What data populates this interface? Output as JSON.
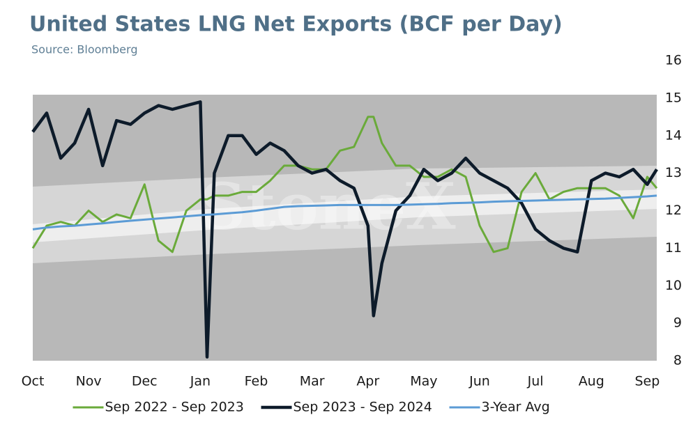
{
  "chart_data": {
    "type": "line",
    "title": "United States LNG Net Exports (BCF per Day)",
    "subtitle": "Source: Bloomberg",
    "watermark": "StoneX",
    "x": [
      0,
      0.25,
      0.5,
      0.75,
      1,
      1.25,
      1.5,
      1.75,
      2,
      2.25,
      2.5,
      2.75,
      3,
      3.12,
      3.25,
      3.5,
      3.75,
      4,
      4.25,
      4.5,
      4.75,
      5,
      5.25,
      5.5,
      5.75,
      6,
      6.1,
      6.25,
      6.5,
      6.75,
      7,
      7.25,
      7.5,
      7.75,
      8,
      8.25,
      8.5,
      8.75,
      9,
      9.25,
      9.5,
      9.75,
      10,
      10.25,
      10.5,
      10.75,
      11,
      11.17
    ],
    "xlim": [
      0,
      11.17
    ],
    "xticks": [
      {
        "value": 0,
        "label": "Oct"
      },
      {
        "value": 1,
        "label": "Nov"
      },
      {
        "value": 2,
        "label": "Dec"
      },
      {
        "value": 3,
        "label": "Jan"
      },
      {
        "value": 4,
        "label": "Feb"
      },
      {
        "value": 5,
        "label": "Mar"
      },
      {
        "value": 6,
        "label": "Apr"
      },
      {
        "value": 7,
        "label": "May"
      },
      {
        "value": 8,
        "label": "Jun"
      },
      {
        "value": 9,
        "label": "Jul"
      },
      {
        "value": 10,
        "label": "Aug"
      },
      {
        "value": 11,
        "label": "Sep"
      }
    ],
    "ylim": [
      8,
      16
    ],
    "yticks": [
      8,
      9,
      10,
      11,
      12,
      13,
      14,
      15,
      16
    ],
    "y_axis_side": "right",
    "legend": "bottom",
    "series": [
      {
        "name": "Sep 2022 - Sep 2023",
        "color": "#6aaa3a",
        "width": 3,
        "values": [
          11.0,
          11.6,
          11.7,
          11.6,
          12.0,
          11.7,
          11.9,
          11.8,
          12.7,
          11.2,
          10.9,
          12.0,
          12.3,
          12.3,
          12.4,
          12.4,
          12.5,
          12.5,
          12.8,
          13.2,
          13.2,
          13.1,
          13.1,
          13.6,
          13.7,
          14.5,
          14.5,
          13.8,
          13.2,
          13.2,
          12.9,
          12.9,
          13.1,
          12.9,
          11.6,
          10.9,
          11.0,
          12.5,
          13.0,
          12.3,
          12.5,
          12.6,
          12.6,
          12.6,
          12.4,
          11.8,
          12.9,
          12.6
        ]
      },
      {
        "name": "Sep 2023 - Sep 2024",
        "color": "#0d1b2a",
        "width": 4.5,
        "values": [
          14.1,
          14.6,
          13.4,
          13.8,
          14.7,
          13.2,
          14.4,
          14.3,
          14.6,
          14.8,
          14.7,
          14.8,
          14.9,
          8.1,
          13.0,
          14.0,
          14.0,
          13.5,
          13.8,
          13.6,
          13.2,
          13.0,
          13.1,
          12.8,
          12.6,
          11.6,
          9.2,
          10.6,
          12.0,
          12.4,
          13.1,
          12.8,
          13.0,
          13.4,
          13.0,
          12.8,
          12.6,
          12.2,
          11.5,
          11.2,
          11.0,
          10.9,
          12.8,
          13.0,
          12.9,
          13.1,
          12.7,
          13.1
        ]
      },
      {
        "name": "3-Year Avg",
        "color": "#5b9bd5",
        "width": 3,
        "values": [
          11.5,
          11.55,
          11.58,
          11.6,
          11.63,
          11.66,
          11.7,
          11.73,
          11.76,
          11.79,
          11.82,
          11.85,
          11.88,
          11.89,
          11.9,
          11.93,
          11.96,
          12.0,
          12.05,
          12.1,
          12.12,
          12.13,
          12.14,
          12.15,
          12.15,
          12.15,
          12.15,
          12.15,
          12.15,
          12.16,
          12.17,
          12.18,
          12.2,
          12.21,
          12.22,
          12.24,
          12.25,
          12.26,
          12.27,
          12.28,
          12.29,
          12.3,
          12.31,
          12.32,
          12.34,
          12.36,
          12.38,
          12.4
        ]
      }
    ]
  }
}
